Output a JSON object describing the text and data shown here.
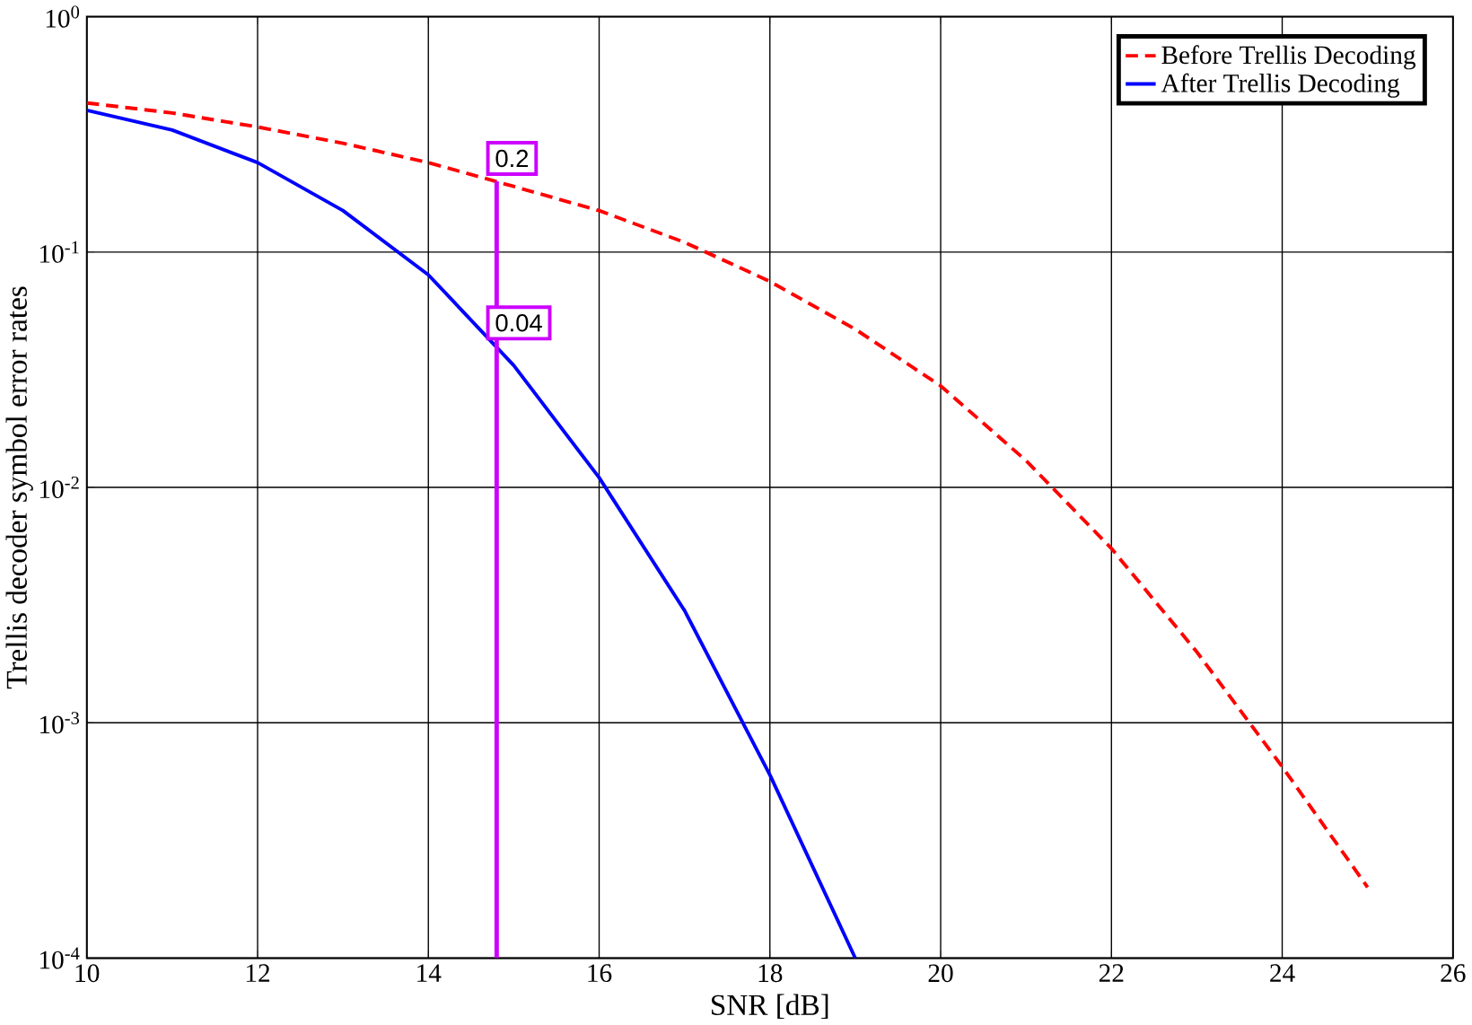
{
  "chart_data": {
    "type": "line",
    "xlabel": "SNR [dB]",
    "ylabel": "Trellis decoder symbol error rates",
    "log": "y",
    "grid": true,
    "legend": "top right",
    "xlim": [
      10,
      26
    ],
    "xticks": [
      10,
      12,
      14,
      16,
      18,
      20,
      22,
      24,
      26
    ],
    "ylim": [
      0.0001,
      1
    ],
    "yticks": [
      {
        "value": 1,
        "label": "10$^{0}$"
      },
      {
        "value": 0.1,
        "label": "10$^{-1}$"
      },
      {
        "value": 0.01,
        "label": "10$^{-2}$"
      },
      {
        "value": 0.001,
        "label": "10$^{-3}$"
      },
      {
        "value": 0.0001,
        "label": "10$^{-4}$"
      }
    ],
    "series": [
      {
        "name": "Before Trellis Decoding",
        "color": "#ff0000",
        "line_style": "dashed",
        "x": [
          10,
          11,
          12,
          13,
          14,
          15,
          16,
          17,
          18,
          19,
          20,
          21,
          22,
          23,
          24,
          25
        ],
        "values": [
          0.43,
          0.39,
          0.34,
          0.29,
          0.24,
          0.19,
          0.15,
          0.11,
          0.075,
          0.047,
          0.027,
          0.013,
          0.0055,
          0.002,
          0.00065,
          0.0002
        ]
      },
      {
        "name": "After Trellis Decoding",
        "color": "#0000ff",
        "line_style": "solid",
        "x": [
          10,
          11,
          12,
          13,
          14,
          15,
          16,
          17,
          18,
          19
        ],
        "values": [
          0.4,
          0.33,
          0.24,
          0.15,
          0.08,
          0.033,
          0.011,
          0.003,
          0.0006,
          0.0001
        ]
      }
    ],
    "ref_lines": [
      {
        "axis": "x",
        "value": 14.8,
        "color": "#cc00ff"
      }
    ],
    "annotations": [
      {
        "text": "0.2",
        "x": 14.8,
        "y": 0.2
      },
      {
        "text": "0.04",
        "x": 14.8,
        "y": 0.04
      }
    ]
  }
}
